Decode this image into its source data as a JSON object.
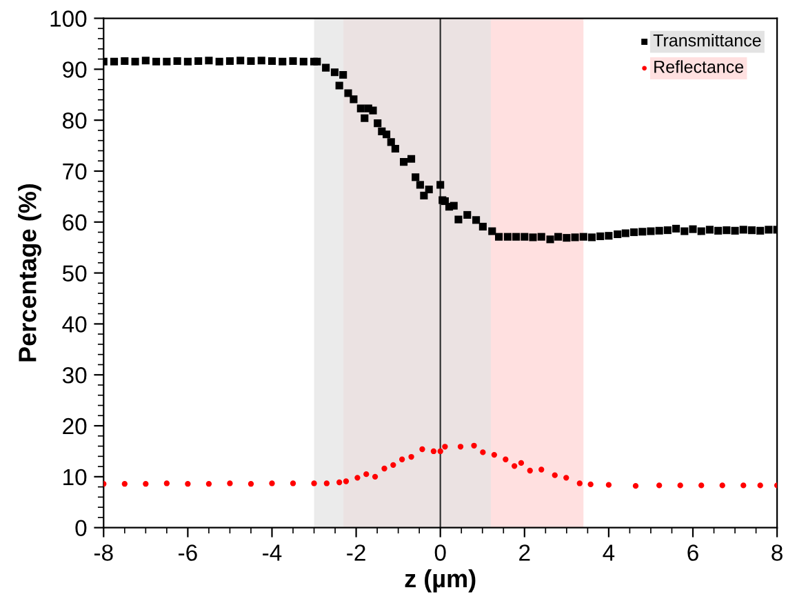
{
  "chart_data": {
    "type": "scatter",
    "xlabel": "z (µm)",
    "ylabel": "Percentage (%)",
    "xlim": [
      -8,
      8
    ],
    "xticks": [
      -8,
      -6,
      -4,
      -2,
      0,
      2,
      4,
      6,
      8
    ],
    "ylim": [
      0,
      100
    ],
    "yticks": [
      0,
      10,
      20,
      30,
      40,
      50,
      60,
      70,
      80,
      90,
      100
    ],
    "grid": false,
    "legend": "top right",
    "series": [
      {
        "name": "Transmittance",
        "color": "#000000",
        "marker": "square",
        "x": [
          -8,
          -7.75,
          -7.5,
          -7.25,
          -7,
          -6.75,
          -6.5,
          -6.25,
          -6,
          -5.75,
          -5.5,
          -5.25,
          -5,
          -4.75,
          -4.5,
          -4.25,
          -4,
          -3.75,
          -3.5,
          -3.25,
          -3,
          -2.93,
          -2.72,
          -2.51,
          -2.4,
          -2.31,
          -2.19,
          -2.06,
          -1.89,
          -1.8,
          -1.71,
          -1.6,
          -1.49,
          -1.39,
          -1.28,
          -1.17,
          -1.07,
          -0.87,
          -0.69,
          -0.59,
          -0.48,
          -0.39,
          -0.27,
          0,
          0.05,
          0.11,
          0.21,
          0.32,
          0.43,
          0.64,
          0.85,
          1.01,
          1.23,
          1.39,
          1.6,
          1.8,
          2.0,
          2.2,
          2.4,
          2.61,
          2.8,
          3.0,
          3.2,
          3.4,
          3.6,
          3.8,
          4.0,
          4.21,
          4.4,
          4.6,
          4.8,
          5.0,
          5.2,
          5.4,
          5.6,
          5.8,
          6.0,
          6.2,
          6.4,
          6.6,
          6.8,
          7.0,
          7.2,
          7.4,
          7.6,
          7.8,
          8
        ],
        "values": [
          91.5,
          91.5,
          91.6,
          91.5,
          91.7,
          91.5,
          91.5,
          91.6,
          91.5,
          91.6,
          91.7,
          91.5,
          91.6,
          91.7,
          91.6,
          91.7,
          91.6,
          91.5,
          91.6,
          91.5,
          91.5,
          91.5,
          90.3,
          89.4,
          86.8,
          88.9,
          85.3,
          84.1,
          82.3,
          80.4,
          82.3,
          81.9,
          79.4,
          77.8,
          77.2,
          75.7,
          74.4,
          71.8,
          72.4,
          68.8,
          67.3,
          65.2,
          66.4,
          67.3,
          64.3,
          64.1,
          63.0,
          63.2,
          60.5,
          61.4,
          60.4,
          59.1,
          58.2,
          57.1,
          57.1,
          57.1,
          57.1,
          57.0,
          57.1,
          56.6,
          57.1,
          56.9,
          57.0,
          57.1,
          57.0,
          57.2,
          57.3,
          57.6,
          57.8,
          58.0,
          58.1,
          58.2,
          58.3,
          58.4,
          58.7,
          58.2,
          58.6,
          58.2,
          58.5,
          58.3,
          58.4,
          58.3,
          58.5,
          58.4,
          58.3,
          58.5,
          58.5
        ]
      },
      {
        "name": "Reflectance",
        "color": "#ff0000",
        "marker": "circle",
        "x": [
          -8,
          -7.5,
          -7,
          -6.5,
          -6,
          -5.5,
          -5,
          -4.5,
          -4,
          -3.5,
          -3,
          -2.7,
          -2.4,
          -2.24,
          -1.97,
          -1.76,
          -1.55,
          -1.33,
          -1.12,
          -0.91,
          -0.69,
          -0.43,
          -0.16,
          0,
          0.11,
          0.48,
          0.8,
          1.01,
          1.28,
          1.55,
          1.76,
          1.92,
          2.13,
          2.4,
          2.72,
          2.99,
          3.31,
          3.57,
          4.0,
          4.64,
          5.2,
          5.7,
          6.2,
          6.7,
          7.2,
          7.6,
          8
        ],
        "values": [
          8.6,
          8.6,
          8.6,
          8.7,
          8.6,
          8.6,
          8.7,
          8.6,
          8.7,
          8.7,
          8.7,
          8.7,
          8.9,
          9.1,
          9.8,
          10.5,
          10.0,
          11.6,
          12.3,
          13.4,
          13.9,
          15.4,
          15.0,
          15.0,
          15.9,
          15.9,
          16.1,
          14.8,
          14.3,
          13.4,
          12.1,
          12.7,
          11.2,
          11.4,
          10.3,
          9.8,
          8.7,
          8.5,
          8.4,
          8.2,
          8.3,
          8.3,
          8.3,
          8.3,
          8.3,
          8.3,
          8.3
        ]
      }
    ],
    "bands": [
      {
        "axis": "x",
        "from": -2.3,
        "to": 3.4,
        "color": "#ffe0e0"
      },
      {
        "axis": "x",
        "from": -3.0,
        "to": 1.2,
        "color": "#e3e3e3"
      }
    ],
    "ref_lines": [
      {
        "axis": "x",
        "value": 0,
        "color": "#333333",
        "line_style": "solid"
      }
    ]
  }
}
